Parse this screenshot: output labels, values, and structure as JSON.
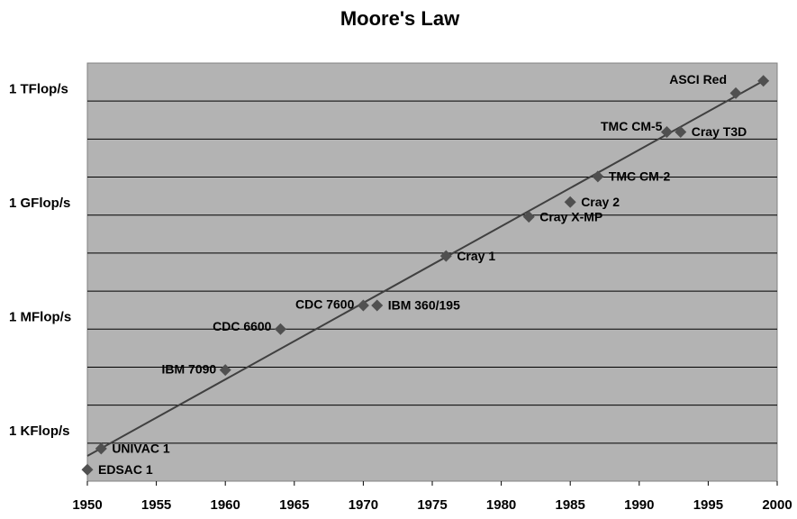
{
  "chart_data": {
    "type": "scatter",
    "title": "Moore's Law",
    "x": [
      1950,
      1951,
      1960,
      1964,
      1970,
      1971,
      1976,
      1982,
      1985,
      1987,
      1992,
      1993,
      1997,
      1999
    ],
    "values": [
      100,
      360,
      42000,
      500000,
      2100000,
      2100000,
      42000000,
      450000000,
      1100000000,
      5200000000,
      77000000000,
      77000000000,
      810000000000,
      1700000000000
    ],
    "labels": [
      "EDSAC 1",
      "UNIVAC 1",
      "IBM 7090",
      "CDC 6600",
      "CDC 7600",
      "IBM 360/195",
      "Cray 1",
      "Cray X-MP",
      "Cray 2",
      "TMC CM-2",
      "TMC CM-5",
      "Cray T3D",
      "ASCI Red",
      null
    ],
    "color": "#505050",
    "trendline": {
      "x": [
        1950,
        1999
      ],
      "values": [
        230,
        1700000000000
      ],
      "color": "#404040"
    },
    "log_y": true,
    "xlim": [
      1950,
      2000
    ],
    "xticks": [
      1950,
      1955,
      1960,
      1965,
      1970,
      1975,
      1980,
      1985,
      1990,
      1995,
      2000
    ],
    "ylim": [
      50,
      5000000000000
    ],
    "yticks": [
      {
        "value": 1000,
        "label": "1 KFlop/s"
      },
      {
        "value": 1000000,
        "label": "1 MFlop/s"
      },
      {
        "value": 1000000000,
        "label": "1 GFlop/s"
      },
      {
        "value": 1000000000000,
        "label": "1 TFlop/s"
      }
    ],
    "ygrid": [
      500,
      5000,
      50000,
      500000,
      5000000,
      50000000,
      500000000,
      5000000000,
      50000000000,
      500000000000
    ],
    "grid": true,
    "plot_background": "#b3b3b3"
  }
}
